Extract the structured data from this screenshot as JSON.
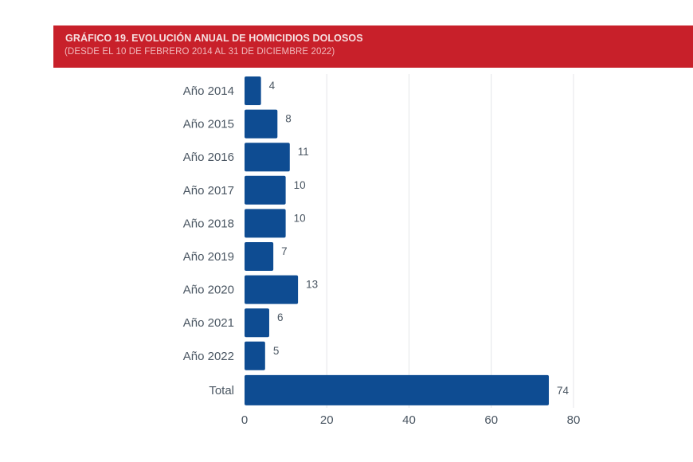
{
  "header": {
    "title": "GRÁFICO 19. EVOLUCIÓN ANUAL DE HOMICIDIOS DOLOSOS",
    "subtitle": "(DESDE EL 10 DE FEBRERO 2014 AL 31 DE DICIEMBRE 2022)"
  },
  "colors": {
    "header_bg": "#c8202a",
    "bar": "#0e4c92",
    "text": "#4a5662",
    "grid": "#e4e6e8"
  },
  "chart_data": {
    "type": "bar",
    "orientation": "horizontal",
    "title": "GRÁFICO 19. EVOLUCIÓN ANUAL DE HOMICIDIOS DOLOSOS",
    "subtitle": "(DESDE EL 10 DE FEBRERO 2014 AL 31 DE DICIEMBRE 2022)",
    "categories": [
      "Año 2014",
      "Año 2015",
      "Año 2016",
      "Año 2017",
      "Año 2018",
      "Año 2019",
      "Año 2020",
      "Año 2021",
      "Año 2022",
      "Total"
    ],
    "values": [
      4,
      8,
      11,
      10,
      10,
      7,
      13,
      6,
      5,
      74
    ],
    "xlabel": "",
    "ylabel": "",
    "xlim": [
      0,
      80
    ],
    "xticks": [
      0,
      20,
      40,
      60,
      80
    ],
    "grid": true,
    "data_labels": true,
    "legend": "none"
  }
}
